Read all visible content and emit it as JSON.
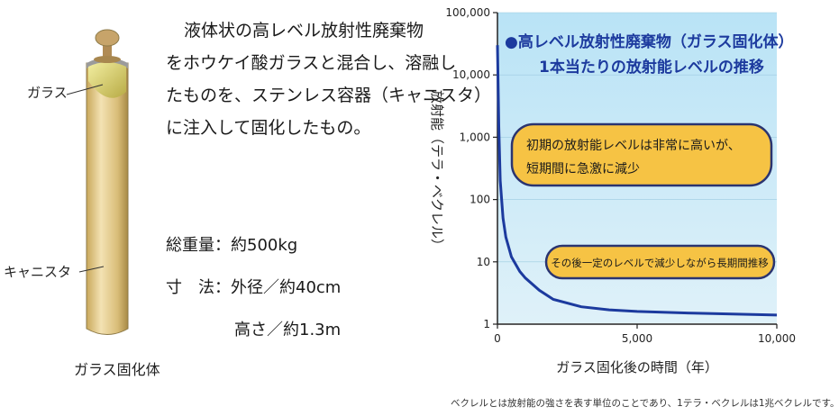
{
  "left_panel": {
    "glass_label": "ガラス",
    "canister_label": "キャニスタ",
    "product_label": "ガラス固化体",
    "description": [
      "液体状の高レベル放射性廃棄物",
      "をホウケイ酸ガラスと混合し、溶融し",
      "たものを、ステンレス容器（キャニスタ）",
      "に注入して固化したもの。"
    ],
    "spec_weight": "総重量：約500kg",
    "spec_diameter": "寸　法：外径／約40cm",
    "spec_height": "高さ／約1.3m"
  },
  "footnote": "ベクレルとは放射能の強さを表す単位のことであり、1テラ・ベクレルは1兆ベクレルです。",
  "colors": {
    "plot_bg_top": "#b9e3f6",
    "plot_bg_bottom": "#dff1f9",
    "curve": "#1c3a9e",
    "title": "#1c3a9e",
    "callout_fill": "#f6c344",
    "callout_stroke": "#2a3470"
  },
  "chart_data": {
    "type": "line",
    "title": "●高レベル放射性廃棄物（ガラス固化体）",
    "subtitle": "1本当たりの放射能レベルの推移",
    "xlabel": "ガラス固化後の時間（年）",
    "ylabel": "放射能（テラ・ベクレル）",
    "y_scale": "log",
    "xlim": [
      0,
      10000
    ],
    "ylim": [
      1,
      100000
    ],
    "x_ticks": [
      0,
      5000,
      10000
    ],
    "x_tick_labels": [
      "0",
      "5,000",
      "10,000"
    ],
    "y_ticks": [
      1,
      10,
      100,
      1000,
      10000,
      100000
    ],
    "y_tick_labels": [
      "1",
      "10",
      "100",
      "1,000",
      "10,000",
      "100,000"
    ],
    "series": [
      {
        "x": [
          0,
          50,
          100,
          200,
          300,
          500,
          800,
          1000,
          1500,
          2000,
          3000,
          4000,
          5000,
          7000,
          10000
        ],
        "y": [
          30000,
          1500,
          200,
          50,
          25,
          12,
          7,
          5.5,
          3.5,
          2.5,
          1.9,
          1.7,
          1.6,
          1.5,
          1.4
        ]
      }
    ],
    "annotations": [
      "初期の放射能レベルは非常に高いが、",
      "短期間に急激に減少",
      "その後一定のレベルで減少しながら長期間推移"
    ]
  }
}
